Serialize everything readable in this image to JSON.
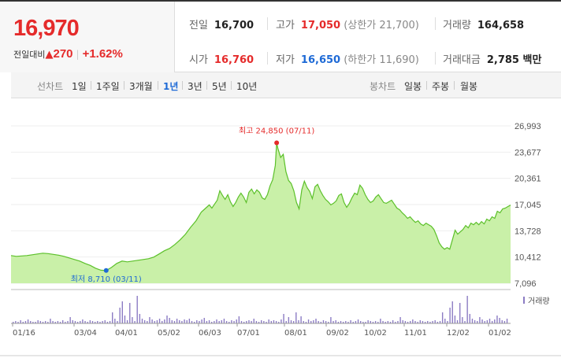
{
  "price": "16,970",
  "change": {
    "label": "전일대비",
    "arrow": "▲",
    "amount": "270",
    "pct": "+1.62%"
  },
  "stats": {
    "prev_label": "전일",
    "prev": "16,700",
    "high_label": "고가",
    "high": "17,050",
    "upper_label": "(상한가 21,700)",
    "volume_label": "거래량",
    "volume": "164,658",
    "open_label": "시가",
    "open": "16,760",
    "low_label": "저가",
    "low": "16,650",
    "lower_label": "(하한가 11,690)",
    "amount_label": "거래대금",
    "amount": "2,785 백만"
  },
  "toolbar": {
    "line_label": "선차트",
    "periods": [
      "1일",
      "1주일",
      "3개월",
      "1년",
      "3년",
      "5년",
      "10년"
    ],
    "selected": "1년",
    "candle_label": "봉차트",
    "candles": [
      "일봉",
      "주봉",
      "월봉"
    ]
  },
  "colors": {
    "up": "#e52b2b",
    "down": "#1e6ad6",
    "line": "#5cc02a",
    "fill": "#c9f0a8",
    "volume": "#8c7cc4"
  },
  "chart_data": {
    "type": "area",
    "y_ticks": [
      "26,993",
      "23,677",
      "20,361",
      "17,045",
      "13,728",
      "10,412",
      "7,096"
    ],
    "ylim": [
      7096,
      26993
    ],
    "x_ticks": [
      "01/16",
      "03/04",
      "04/01",
      "05/02",
      "06/03",
      "07/01",
      "08/01",
      "09/02",
      "10/02",
      "11/01",
      "12/02",
      "01/02"
    ],
    "max_annotation": "최고 24,850 (07/11)",
    "min_annotation": "최저 8,710 (03/11)",
    "volume_legend": "거래량",
    "price_series": [
      [
        0,
        10600
      ],
      [
        4,
        10500
      ],
      [
        8,
        10550
      ],
      [
        12,
        10600
      ],
      [
        16,
        10700
      ],
      [
        20,
        10800
      ],
      [
        24,
        10900
      ],
      [
        28,
        10850
      ],
      [
        32,
        10750
      ],
      [
        36,
        10650
      ],
      [
        40,
        10500
      ],
      [
        44,
        10300
      ],
      [
        48,
        10100
      ],
      [
        52,
        9900
      ],
      [
        56,
        9600
      ],
      [
        60,
        9350
      ],
      [
        64,
        9000
      ],
      [
        68,
        8750
      ],
      [
        72,
        8710
      ],
      [
        76,
        9100
      ],
      [
        80,
        9600
      ],
      [
        84,
        9900
      ],
      [
        88,
        9800
      ],
      [
        92,
        9900
      ],
      [
        96,
        10000
      ],
      [
        100,
        10100
      ],
      [
        104,
        10200
      ],
      [
        108,
        10400
      ],
      [
        112,
        10800
      ],
      [
        116,
        11200
      ],
      [
        120,
        11500
      ],
      [
        124,
        12000
      ],
      [
        128,
        12600
      ],
      [
        132,
        13300
      ],
      [
        136,
        14200
      ],
      [
        140,
        15000
      ],
      [
        144,
        16100
      ],
      [
        148,
        16700
      ],
      [
        150,
        17000
      ],
      [
        152,
        16600
      ],
      [
        156,
        17600
      ],
      [
        158,
        18800
      ],
      [
        160,
        18200
      ],
      [
        162,
        17700
      ],
      [
        164,
        18300
      ],
      [
        166,
        17400
      ],
      [
        168,
        16800
      ],
      [
        170,
        17300
      ],
      [
        172,
        18000
      ],
      [
        174,
        18500
      ],
      [
        176,
        18000
      ],
      [
        178,
        17300
      ],
      [
        180,
        18600
      ],
      [
        182,
        19000
      ],
      [
        184,
        18400
      ],
      [
        186,
        18900
      ],
      [
        188,
        18600
      ],
      [
        190,
        17900
      ],
      [
        192,
        17700
      ],
      [
        194,
        18300
      ],
      [
        196,
        19400
      ],
      [
        198,
        20200
      ],
      [
        200,
        22000
      ],
      [
        201,
        24850
      ],
      [
        202,
        24100
      ],
      [
        204,
        23000
      ],
      [
        206,
        23400
      ],
      [
        208,
        21200
      ],
      [
        210,
        20100
      ],
      [
        212,
        19700
      ],
      [
        214,
        18800
      ],
      [
        216,
        17300
      ],
      [
        218,
        16500
      ],
      [
        220,
        18900
      ],
      [
        222,
        20000
      ],
      [
        224,
        19200
      ],
      [
        226,
        18700
      ],
      [
        228,
        17800
      ],
      [
        230,
        19300
      ],
      [
        232,
        19600
      ],
      [
        234,
        18800
      ],
      [
        236,
        18200
      ],
      [
        238,
        17700
      ],
      [
        240,
        17400
      ],
      [
        242,
        17000
      ],
      [
        244,
        17200
      ],
      [
        246,
        17500
      ],
      [
        248,
        18200
      ],
      [
        250,
        18400
      ],
      [
        252,
        17300
      ],
      [
        254,
        16700
      ],
      [
        256,
        17200
      ],
      [
        258,
        17900
      ],
      [
        260,
        18500
      ],
      [
        262,
        18300
      ],
      [
        264,
        19500
      ],
      [
        266,
        19100
      ],
      [
        268,
        18300
      ],
      [
        270,
        17700
      ],
      [
        272,
        17300
      ],
      [
        274,
        17500
      ],
      [
        276,
        18000
      ],
      [
        278,
        18300
      ],
      [
        280,
        17800
      ],
      [
        282,
        17300
      ],
      [
        284,
        17200
      ],
      [
        286,
        17400
      ],
      [
        288,
        17600
      ],
      [
        290,
        17100
      ],
      [
        292,
        16600
      ],
      [
        294,
        16400
      ],
      [
        296,
        16000
      ],
      [
        298,
        15700
      ],
      [
        300,
        15300
      ],
      [
        302,
        15500
      ],
      [
        304,
        15100
      ],
      [
        306,
        14800
      ],
      [
        308,
        15000
      ],
      [
        310,
        14600
      ],
      [
        312,
        14400
      ],
      [
        314,
        14700
      ],
      [
        316,
        14500
      ],
      [
        318,
        14300
      ],
      [
        320,
        13900
      ],
      [
        322,
        13100
      ],
      [
        324,
        12200
      ],
      [
        326,
        11700
      ],
      [
        328,
        11400
      ],
      [
        330,
        11600
      ],
      [
        332,
        11400
      ],
      [
        334,
        12600
      ],
      [
        336,
        13800
      ],
      [
        338,
        13300
      ],
      [
        340,
        13600
      ],
      [
        342,
        13900
      ],
      [
        344,
        14400
      ],
      [
        346,
        14100
      ],
      [
        348,
        14700
      ],
      [
        350,
        14500
      ],
      [
        352,
        14800
      ],
      [
        354,
        14500
      ],
      [
        356,
        14900
      ],
      [
        358,
        14600
      ],
      [
        360,
        15200
      ],
      [
        362,
        15000
      ],
      [
        364,
        15500
      ],
      [
        366,
        15300
      ],
      [
        368,
        16200
      ],
      [
        370,
        16000
      ],
      [
        372,
        16500
      ],
      [
        374,
        16600
      ],
      [
        376,
        16800
      ],
      [
        378,
        16970
      ]
    ]
  }
}
